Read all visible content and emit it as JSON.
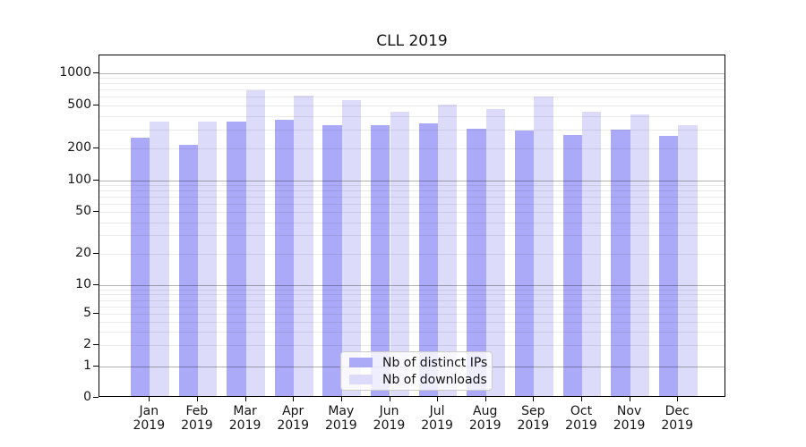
{
  "title": "CLL 2019",
  "chart_data": {
    "type": "bar",
    "title": "CLL 2019",
    "categories": [
      "Jan",
      "Feb",
      "Mar",
      "Apr",
      "May",
      "Jun",
      "Jul",
      "Aug",
      "Sep",
      "Oct",
      "Nov",
      "Dec"
    ],
    "category_second_line": "2019",
    "series": [
      {
        "name": "Nb of distinct IPs",
        "color": "#abaaf8",
        "values": [
          250,
          215,
          350,
          370,
          330,
          325,
          340,
          305,
          290,
          265,
          300,
          260
        ]
      },
      {
        "name": "Nb of downloads",
        "color": "#dcdbf9",
        "values": [
          350,
          355,
          695,
          610,
          560,
          440,
          510,
          460,
          605,
          435,
          410,
          325
        ]
      }
    ],
    "xlabel": "",
    "ylabel": "",
    "yscale": "symlog",
    "yticks": [
      0,
      1,
      2,
      5,
      10,
      20,
      50,
      100,
      200,
      500,
      1000
    ],
    "ylim": [
      0,
      1400
    ],
    "grid": {
      "axis": "y",
      "major": true,
      "minor": true
    },
    "legend_position": "lower center",
    "colors": {
      "major_gridline": "rgba(0,0,0,0.30)",
      "minor_gridline": "rgba(0,0,0,0.08)",
      "axis": "#000000",
      "text": "#141414",
      "background": "#ffffff"
    }
  }
}
